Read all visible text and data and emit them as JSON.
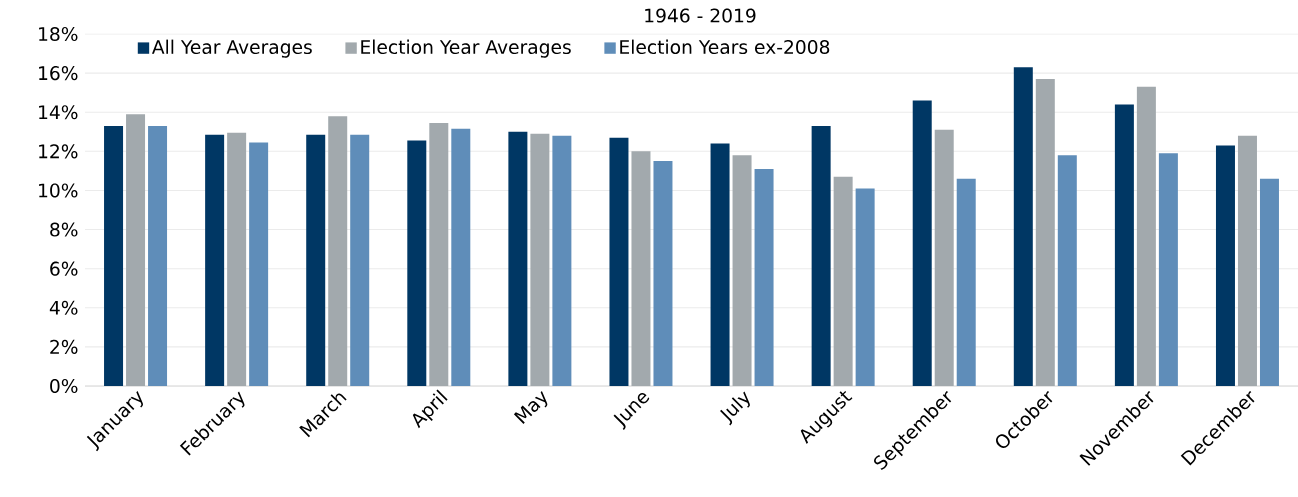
{
  "chart_data": {
    "type": "bar",
    "title": "1946 - 2019",
    "categories": [
      "January",
      "February",
      "March",
      "April",
      "May",
      "June",
      "July",
      "August",
      "September",
      "October",
      "November",
      "December"
    ],
    "series": [
      {
        "name": "All Year Averages",
        "color": "#003764",
        "values": [
          13.3,
          12.85,
          12.85,
          12.55,
          13.0,
          12.7,
          12.4,
          13.3,
          14.6,
          16.3,
          14.4,
          12.3
        ]
      },
      {
        "name": "Election Year Averages",
        "color": "#a2a9ad",
        "values": [
          13.9,
          12.95,
          13.8,
          13.45,
          12.9,
          12.0,
          11.8,
          10.7,
          13.1,
          15.7,
          15.3,
          12.8
        ]
      },
      {
        "name": "Election Years ex-2008",
        "color": "#5f8db9",
        "values": [
          13.3,
          12.45,
          12.85,
          13.15,
          12.8,
          11.5,
          11.1,
          10.1,
          10.6,
          11.8,
          11.9,
          10.6
        ]
      }
    ],
    "ylim": [
      0,
      18
    ],
    "yticks": [
      {
        "value": 0,
        "label": "0%"
      },
      {
        "value": 2,
        "label": "2%"
      },
      {
        "value": 4,
        "label": "4%"
      },
      {
        "value": 6,
        "label": "6%"
      },
      {
        "value": 8,
        "label": "8%"
      },
      {
        "value": 10,
        "label": "10%"
      },
      {
        "value": 12,
        "label": "12%"
      },
      {
        "value": 14,
        "label": "14%"
      },
      {
        "value": 16,
        "label": "16%"
      },
      {
        "value": 18,
        "label": "18%"
      }
    ],
    "grid": "y",
    "legend": "top left"
  }
}
